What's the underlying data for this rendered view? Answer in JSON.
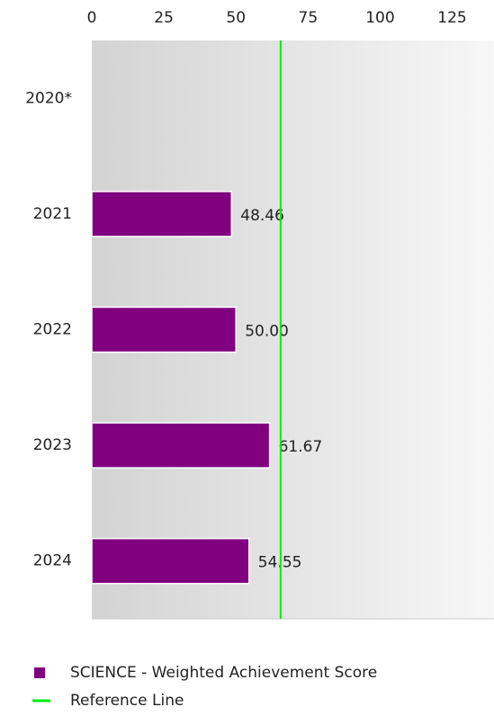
{
  "chart_data": {
    "type": "bar",
    "orientation": "horizontal",
    "categories": [
      "2020*",
      "2021",
      "2022",
      "2023",
      "2024"
    ],
    "series": [
      {
        "name": "SCIENCE - Weighted Achievement Score",
        "color": "#800080",
        "values": [
          null,
          48.46,
          50.0,
          61.67,
          54.55
        ],
        "value_labels": [
          null,
          "48.46",
          "50.00",
          "61.67",
          "54.55"
        ]
      }
    ],
    "reference_line": {
      "name": "Reference Line",
      "value": 65.5,
      "color": "#00ee00"
    },
    "xlim": [
      0,
      139.5
    ],
    "xticks": [
      0,
      25,
      50,
      75,
      100,
      125
    ]
  }
}
